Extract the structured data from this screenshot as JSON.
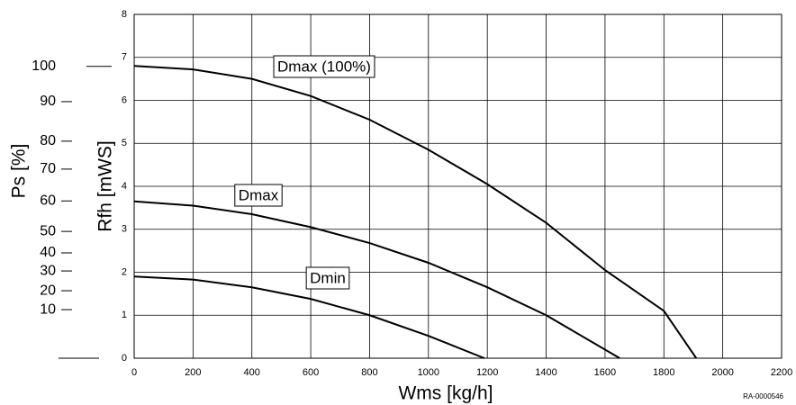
{
  "chart_data": {
    "type": "line",
    "xlabel": "Wms [kg/h]",
    "ylabel": "Rfh [mWS]",
    "xlim": [
      0,
      2200
    ],
    "xticks": [
      0,
      200,
      400,
      600,
      800,
      1000,
      1200,
      1400,
      1600,
      1800,
      2000,
      2200
    ],
    "ylim": [
      0,
      8
    ],
    "yticks": [
      0,
      1,
      2,
      3,
      4,
      5,
      6,
      7,
      8
    ],
    "grid": true,
    "ps_scale": {
      "label": "Ps [%]",
      "ticks": [
        100,
        90,
        80,
        70,
        60,
        50,
        40,
        30,
        20,
        10,
        null
      ],
      "rfh": [
        6.79,
        5.97,
        5.05,
        4.4,
        3.66,
        2.95,
        2.45,
        2.03,
        1.57,
        1.13,
        0
      ]
    },
    "series": [
      {
        "name": "Dmax (100%)",
        "color": "#000000",
        "x": [
          0,
          200,
          400,
          600,
          800,
          1000,
          1200,
          1400,
          1600,
          1800,
          1910
        ],
        "values": [
          6.8,
          6.72,
          6.5,
          6.1,
          5.55,
          4.85,
          4.05,
          3.15,
          2.05,
          1.1,
          0
        ]
      },
      {
        "name": "Dmax",
        "color": "#000000",
        "x": [
          0,
          200,
          400,
          600,
          800,
          1000,
          1200,
          1400,
          1650
        ],
        "values": [
          3.65,
          3.55,
          3.35,
          3.05,
          2.68,
          2.22,
          1.65,
          1.0,
          0
        ]
      },
      {
        "name": "Dmin",
        "color": "#000000",
        "x": [
          0,
          200,
          400,
          600,
          800,
          1000,
          1190
        ],
        "values": [
          1.9,
          1.83,
          1.65,
          1.38,
          1.0,
          0.52,
          0
        ]
      }
    ],
    "code": "RA-0000546"
  }
}
